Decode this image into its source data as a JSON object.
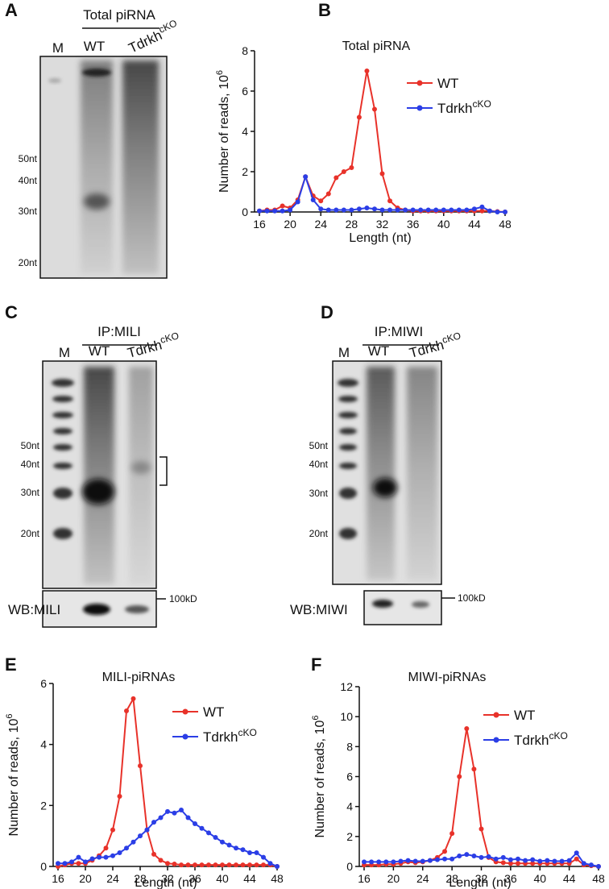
{
  "gels": [
    {
      "panel": "A",
      "header": "Total piRNA",
      "lanes": [
        "M",
        "WT",
        "Tdrkh"
      ],
      "lane_superscript": "cKO",
      "markers": [
        "50nt",
        "40nt",
        "30nt",
        "20nt"
      ]
    },
    {
      "panel": "C",
      "header": "IP:MILI",
      "lanes": [
        "M",
        "WT",
        "Tdrkh"
      ],
      "lane_superscript": "cKO",
      "markers": [
        "50nt",
        "40nt",
        "30nt",
        "20nt"
      ],
      "wb_label": "WB:MILI",
      "wb_size": "100kD"
    },
    {
      "panel": "D",
      "header": "IP:MIWI",
      "lanes": [
        "M",
        "WT",
        "Tdrkh"
      ],
      "lane_superscript": "cKO",
      "markers": [
        "50nt",
        "40nt",
        "30nt",
        "20nt"
      ],
      "wb_label": "WB:MIWI",
      "wb_size": "100kD"
    }
  ],
  "chart_data": [
    {
      "type": "line",
      "panel": "B",
      "title": "Total piRNA",
      "xlabel": "Length (nt)",
      "ylabel": "Number of reads, 10",
      "ylabel_superscript": "6",
      "x": [
        16,
        17,
        18,
        19,
        20,
        21,
        22,
        23,
        24,
        25,
        26,
        27,
        28,
        29,
        30,
        31,
        32,
        33,
        34,
        35,
        36,
        37,
        38,
        39,
        40,
        41,
        42,
        43,
        44,
        45,
        46,
        47,
        48
      ],
      "xlim": [
        16,
        48
      ],
      "xticks": [
        16,
        20,
        24,
        28,
        32,
        36,
        40,
        44,
        48
      ],
      "ylim": [
        0,
        8
      ],
      "yticks": [
        0,
        2,
        4,
        6,
        8
      ],
      "series": [
        {
          "name": "WT",
          "color": "#e8322a",
          "values": [
            0.05,
            0.1,
            0.1,
            0.3,
            0.2,
            0.6,
            1.75,
            0.8,
            0.55,
            0.9,
            1.7,
            2.0,
            2.2,
            4.7,
            7.0,
            5.1,
            1.9,
            0.55,
            0.2,
            0.1,
            0.05,
            0.05,
            0.05,
            0.05,
            0.05,
            0.05,
            0.05,
            0.05,
            0.05,
            0.05,
            0.05,
            0.02,
            0
          ]
        },
        {
          "name": "Tdrkh",
          "name_superscript": "cKO",
          "color": "#2b3ee6",
          "values": [
            0.05,
            0.05,
            0.05,
            0.05,
            0.1,
            0.5,
            1.75,
            0.6,
            0.15,
            0.1,
            0.1,
            0.1,
            0.1,
            0.15,
            0.2,
            0.15,
            0.1,
            0.1,
            0.1,
            0.1,
            0.1,
            0.1,
            0.1,
            0.1,
            0.1,
            0.1,
            0.1,
            0.1,
            0.15,
            0.25,
            0.05,
            0,
            0
          ]
        }
      ]
    },
    {
      "type": "line",
      "panel": "E",
      "title": "MILI-piRNAs",
      "xlabel": "Length (nt)",
      "ylabel": "Number of reads, 10",
      "ylabel_superscript": "6",
      "x": [
        16,
        17,
        18,
        19,
        20,
        21,
        22,
        23,
        24,
        25,
        26,
        27,
        28,
        29,
        30,
        31,
        32,
        33,
        34,
        35,
        36,
        37,
        38,
        39,
        40,
        41,
        42,
        43,
        44,
        45,
        46,
        47,
        48
      ],
      "xlim": [
        16,
        48
      ],
      "xticks": [
        16,
        20,
        24,
        28,
        32,
        36,
        40,
        44,
        48
      ],
      "ylim": [
        0,
        6
      ],
      "yticks": [
        0,
        2,
        4,
        6
      ],
      "series": [
        {
          "name": "WT",
          "color": "#e8322a",
          "values": [
            0,
            0.05,
            0.1,
            0.1,
            0.1,
            0.2,
            0.35,
            0.6,
            1.2,
            2.3,
            5.1,
            5.5,
            3.3,
            1.2,
            0.4,
            0.2,
            0.1,
            0.08,
            0.05,
            0.05,
            0.05,
            0.05,
            0.05,
            0.05,
            0.05,
            0.05,
            0.05,
            0.05,
            0.05,
            0.05,
            0.05,
            0.05,
            0
          ]
        },
        {
          "name": "Tdrkh",
          "name_superscript": "cKO",
          "color": "#2b3ee6",
          "values": [
            0.1,
            0.1,
            0.15,
            0.3,
            0.15,
            0.25,
            0.3,
            0.3,
            0.35,
            0.45,
            0.6,
            0.8,
            1.0,
            1.2,
            1.45,
            1.6,
            1.8,
            1.75,
            1.85,
            1.6,
            1.4,
            1.25,
            1.1,
            0.95,
            0.8,
            0.7,
            0.6,
            0.55,
            0.45,
            0.45,
            0.3,
            0.1,
            0
          ]
        }
      ]
    },
    {
      "type": "line",
      "panel": "F",
      "title": "MIWI-piRNAs",
      "xlabel": "Length (nt)",
      "ylabel": "Number of reads, 10",
      "ylabel_superscript": "6",
      "x": [
        16,
        17,
        18,
        19,
        20,
        21,
        22,
        23,
        24,
        25,
        26,
        27,
        28,
        29,
        30,
        31,
        32,
        33,
        34,
        35,
        36,
        37,
        38,
        39,
        40,
        41,
        42,
        43,
        44,
        45,
        46,
        47,
        48
      ],
      "xlim": [
        16,
        48
      ],
      "xticks": [
        16,
        20,
        24,
        28,
        32,
        36,
        40,
        44,
        48
      ],
      "ylim": [
        0,
        12
      ],
      "yticks": [
        0,
        2,
        4,
        6,
        8,
        10,
        12
      ],
      "series": [
        {
          "name": "WT",
          "color": "#e8322a",
          "values": [
            0.1,
            0.1,
            0.1,
            0.15,
            0.15,
            0.2,
            0.3,
            0.25,
            0.3,
            0.4,
            0.6,
            1.0,
            2.2,
            6.0,
            9.2,
            6.5,
            2.5,
            0.6,
            0.3,
            0.25,
            0.2,
            0.2,
            0.2,
            0.2,
            0.2,
            0.2,
            0.2,
            0.2,
            0.2,
            0.5,
            0.1,
            0.05,
            0
          ]
        },
        {
          "name": "Tdrkh",
          "name_superscript": "cKO",
          "color": "#2b3ee6",
          "values": [
            0.3,
            0.3,
            0.3,
            0.3,
            0.3,
            0.35,
            0.4,
            0.35,
            0.35,
            0.4,
            0.45,
            0.5,
            0.5,
            0.7,
            0.8,
            0.7,
            0.6,
            0.65,
            0.5,
            0.6,
            0.45,
            0.5,
            0.4,
            0.45,
            0.35,
            0.4,
            0.35,
            0.35,
            0.4,
            0.9,
            0.2,
            0.1,
            0
          ]
        }
      ]
    }
  ]
}
